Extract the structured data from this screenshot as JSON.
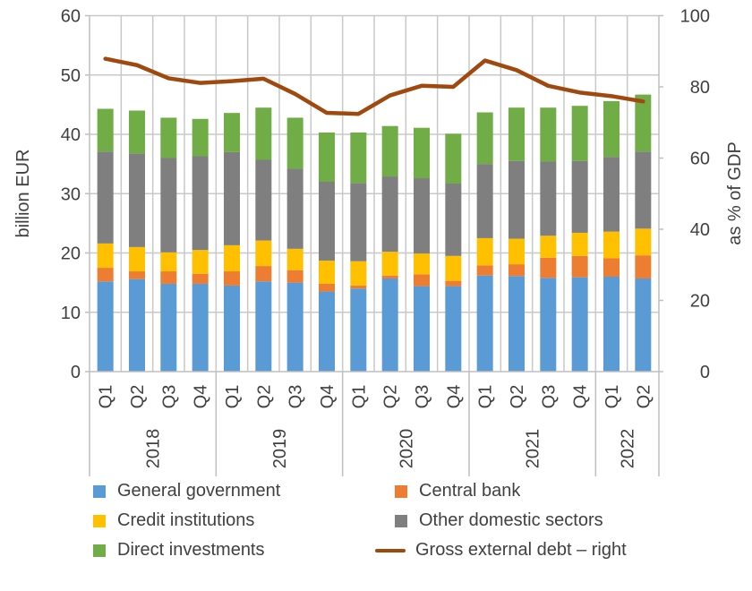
{
  "chart_data": {
    "type": "bar",
    "stacked": true,
    "title": "",
    "ylabel": "billion EUR",
    "y2label": "as % of GDP",
    "ylim": [
      0,
      60
    ],
    "y2lim": [
      0,
      100
    ],
    "yticks": [
      0,
      10,
      20,
      30,
      40,
      50,
      60
    ],
    "y2ticks": [
      0,
      20,
      40,
      60,
      80,
      100
    ],
    "grid": true,
    "legend_position": "bottom",
    "groups": [
      {
        "label": "2018",
        "quarters": [
          "Q1",
          "Q2",
          "Q3",
          "Q4"
        ]
      },
      {
        "label": "2019",
        "quarters": [
          "Q1",
          "Q2",
          "Q3",
          "Q4"
        ]
      },
      {
        "label": "2020",
        "quarters": [
          "Q1",
          "Q2",
          "Q3",
          "Q4"
        ]
      },
      {
        "label": "2021",
        "quarters": [
          "Q1",
          "Q2",
          "Q3",
          "Q4"
        ]
      },
      {
        "label": "2022",
        "quarters": [
          "Q1",
          "Q2"
        ]
      }
    ],
    "series": [
      {
        "name": "General government",
        "color": "#5B9BD5",
        "axis": "left",
        "kind": "bar",
        "values": [
          15.2,
          15.6,
          14.8,
          14.8,
          14.5,
          15.2,
          15.0,
          13.5,
          14.0,
          15.7,
          14.4,
          14.4,
          16.2,
          16.1,
          15.8,
          15.9,
          16.0,
          15.7
        ]
      },
      {
        "name": "Central bank",
        "color": "#ED7D31",
        "axis": "left",
        "kind": "bar",
        "values": [
          2.3,
          1.3,
          2.1,
          1.7,
          2.4,
          2.6,
          2.1,
          1.3,
          0.5,
          0.5,
          2.0,
          0.9,
          1.7,
          2.0,
          3.4,
          3.6,
          3.1,
          3.9
        ]
      },
      {
        "name": "Credit institutions",
        "color": "#FFC000",
        "axis": "left",
        "kind": "bar",
        "values": [
          4.1,
          4.1,
          3.2,
          4.0,
          4.4,
          4.3,
          3.6,
          3.9,
          4.1,
          4.0,
          3.5,
          4.2,
          4.6,
          4.3,
          3.7,
          3.9,
          4.5,
          4.5
        ]
      },
      {
        "name": "Other domestic sectors",
        "color": "#7F7F7F",
        "axis": "left",
        "kind": "bar",
        "values": [
          15.5,
          15.8,
          15.9,
          15.8,
          15.7,
          13.6,
          13.5,
          13.3,
          13.2,
          12.7,
          12.7,
          12.2,
          12.5,
          13.1,
          12.5,
          12.1,
          12.6,
          13.0
        ]
      },
      {
        "name": "Direct investments",
        "color": "#70AD47",
        "axis": "left",
        "kind": "bar",
        "values": [
          7.2,
          7.2,
          6.8,
          6.3,
          6.6,
          8.8,
          8.6,
          8.3,
          8.5,
          8.5,
          8.5,
          8.4,
          8.7,
          9.0,
          9.1,
          9.3,
          9.4,
          9.6
        ]
      },
      {
        "name": "Gross external debt – right",
        "color": "#A0490F",
        "axis": "right",
        "kind": "line",
        "values": [
          87.9,
          86.1,
          82.4,
          81.1,
          81.6,
          82.3,
          78.0,
          72.7,
          72.4,
          77.6,
          80.3,
          80.0,
          87.4,
          84.7,
          80.3,
          78.4,
          77.4,
          75.9
        ]
      }
    ],
    "legend_order": [
      0,
      1,
      2,
      3,
      4,
      5
    ]
  }
}
